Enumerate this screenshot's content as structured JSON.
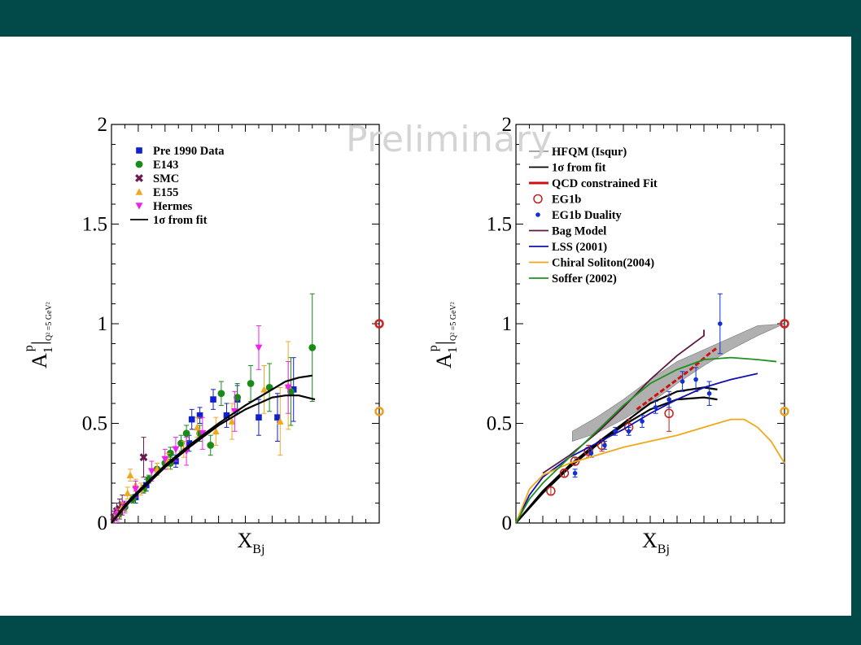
{
  "watermark": "Preliminary",
  "chart_data": [
    {
      "type": "scatter",
      "xlabel": "X_Bj",
      "ylabel": "A_1^p|_{Q²=5 GeV²}",
      "xlim": [
        0,
        1
      ],
      "ylim": [
        0,
        2
      ],
      "yticks": [
        "0",
        "0.5",
        "1",
        "1.5",
        "2"
      ],
      "legend_position": "top-left",
      "series": [
        {
          "name": "Pre 1990 Data",
          "color": "#1020d0",
          "marker": "square",
          "points": [
            [
              0.33,
              0.54
            ],
            [
              0.38,
              0.62
            ],
            [
              0.43,
              0.54
            ],
            [
              0.47,
              0.62
            ],
            [
              0.55,
              0.53
            ],
            [
              0.62,
              0.53
            ],
            [
              0.68,
              0.67
            ],
            [
              0.24,
              0.31
            ],
            [
              0.29,
              0.4
            ],
            [
              0.3,
              0.52
            ],
            [
              0.13,
              0.19
            ],
            [
              0.09,
              0.13
            ]
          ],
          "err": [
            0.04,
            0.05,
            0.06,
            0.07,
            0.09,
            0.12,
            0.16,
            0.03,
            0.04,
            0.05,
            0.03,
            0.03
          ]
        },
        {
          "name": "E143",
          "color": "#1a8a1a",
          "marker": "circle",
          "points": [
            [
              0.03,
              0.05
            ],
            [
              0.05,
              0.08
            ],
            [
              0.08,
              0.12
            ],
            [
              0.12,
              0.17
            ],
            [
              0.14,
              0.22
            ],
            [
              0.17,
              0.27
            ],
            [
              0.2,
              0.3
            ],
            [
              0.22,
              0.35
            ],
            [
              0.26,
              0.4
            ],
            [
              0.28,
              0.45
            ],
            [
              0.33,
              0.45
            ],
            [
              0.37,
              0.39
            ],
            [
              0.41,
              0.65
            ],
            [
              0.47,
              0.63
            ],
            [
              0.52,
              0.7
            ],
            [
              0.59,
              0.68
            ],
            [
              0.67,
              0.66
            ],
            [
              0.75,
              0.88
            ],
            [
              0.22,
              0.3
            ]
          ],
          "err": [
            0.02,
            0.02,
            0.02,
            0.02,
            0.02,
            0.03,
            0.03,
            0.03,
            0.04,
            0.04,
            0.04,
            0.05,
            0.06,
            0.07,
            0.09,
            0.12,
            0.17,
            0.27,
            0.03
          ]
        },
        {
          "name": "SMC",
          "color": "#6a1a50",
          "marker": "x",
          "points": [
            [
              0.01,
              0.03
            ],
            [
              0.02,
              0.06
            ],
            [
              0.03,
              0.07
            ],
            [
              0.04,
              0.09
            ],
            [
              0.12,
              0.33
            ]
          ],
          "err": [
            0.03,
            0.04,
            0.05,
            0.05,
            0.1
          ]
        },
        {
          "name": "E155",
          "color": "#f0a820",
          "marker": "triangle-up",
          "points": [
            [
              0.02,
              0.05
            ],
            [
              0.04,
              0.08
            ],
            [
              0.06,
              0.15
            ],
            [
              0.07,
              0.24
            ],
            [
              0.09,
              0.19
            ],
            [
              0.11,
              0.17
            ],
            [
              0.17,
              0.27
            ],
            [
              0.21,
              0.31
            ],
            [
              0.27,
              0.37
            ],
            [
              0.32,
              0.48
            ],
            [
              0.39,
              0.46
            ],
            [
              0.45,
              0.51
            ],
            [
              0.57,
              0.67
            ],
            [
              0.63,
              0.51
            ],
            [
              0.66,
              0.69
            ]
          ],
          "err": [
            0.02,
            0.02,
            0.03,
            0.03,
            0.03,
            0.03,
            0.03,
            0.04,
            0.04,
            0.05,
            0.07,
            0.09,
            0.12,
            0.17,
            0.22
          ]
        },
        {
          "name": "Hermes",
          "color": "#ee22ee",
          "marker": "triangle-down",
          "points": [
            [
              0.02,
              0.04
            ],
            [
              0.05,
              0.08
            ],
            [
              0.09,
              0.17
            ],
            [
              0.15,
              0.26
            ],
            [
              0.2,
              0.32
            ],
            [
              0.24,
              0.37
            ],
            [
              0.28,
              0.36
            ],
            [
              0.34,
              0.45
            ],
            [
              0.46,
              0.56
            ],
            [
              0.55,
              0.88
            ],
            [
              0.66,
              0.68
            ]
          ],
          "err": [
            0.03,
            0.03,
            0.04,
            0.05,
            0.05,
            0.06,
            0.07,
            0.08,
            0.1,
            0.11,
            0.13
          ]
        },
        {
          "name": "1σ from fit",
          "color": "#000000",
          "marker": "line",
          "upper": [
            [
              0.0,
              0.0
            ],
            [
              0.05,
              0.09
            ],
            [
              0.1,
              0.16
            ],
            [
              0.2,
              0.29
            ],
            [
              0.3,
              0.4
            ],
            [
              0.4,
              0.5
            ],
            [
              0.5,
              0.59
            ],
            [
              0.6,
              0.67
            ],
            [
              0.65,
              0.71
            ],
            [
              0.7,
              0.73
            ],
            [
              0.75,
              0.74
            ]
          ],
          "lower": [
            [
              0.0,
              0.0
            ],
            [
              0.05,
              0.08
            ],
            [
              0.1,
              0.15
            ],
            [
              0.2,
              0.28
            ],
            [
              0.3,
              0.39
            ],
            [
              0.4,
              0.49
            ],
            [
              0.5,
              0.57
            ],
            [
              0.6,
              0.63
            ],
            [
              0.65,
              0.64
            ],
            [
              0.7,
              0.64
            ],
            [
              0.76,
              0.62
            ]
          ]
        }
      ],
      "edge_markers": [
        {
          "y": 1.0,
          "color": "#d02020"
        },
        {
          "y": 0.56,
          "color": "#e8a020"
        }
      ]
    },
    {
      "type": "scatter",
      "xlabel": "X_Bj",
      "ylabel": "A_1^p|_{Q²=5 GeV²}",
      "xlim": [
        0,
        1
      ],
      "ylim": [
        0,
        2
      ],
      "yticks": [
        "0",
        "0.5",
        "1",
        "1.5",
        "2"
      ],
      "legend_position": "top-left",
      "series": [
        {
          "name": "HFQM (Isqur)",
          "color": "#999999",
          "marker": "band",
          "upper": [
            [
              0.21,
              0.46
            ],
            [
              0.3,
              0.53
            ],
            [
              0.4,
              0.62
            ],
            [
              0.5,
              0.72
            ],
            [
              0.6,
              0.81
            ],
            [
              0.7,
              0.87
            ],
            [
              0.8,
              0.93
            ],
            [
              0.9,
              0.99
            ],
            [
              1.0,
              1.0
            ]
          ],
          "lower": [
            [
              0.21,
              0.41
            ],
            [
              0.3,
              0.45
            ],
            [
              0.4,
              0.52
            ],
            [
              0.5,
              0.6
            ],
            [
              0.6,
              0.7
            ],
            [
              0.7,
              0.79
            ],
            [
              0.8,
              0.87
            ],
            [
              0.9,
              0.94
            ],
            [
              1.0,
              1.0
            ]
          ]
        },
        {
          "name": "1σ from fit",
          "color": "#000000",
          "marker": "line",
          "upper": [
            [
              0.0,
              0.0
            ],
            [
              0.1,
              0.16
            ],
            [
              0.2,
              0.29
            ],
            [
              0.3,
              0.4
            ],
            [
              0.4,
              0.5
            ],
            [
              0.5,
              0.6
            ],
            [
              0.6,
              0.66
            ],
            [
              0.7,
              0.68
            ],
            [
              0.75,
              0.67
            ]
          ],
          "lower": [
            [
              0.0,
              0.0
            ],
            [
              0.1,
              0.15
            ],
            [
              0.2,
              0.28
            ],
            [
              0.3,
              0.39
            ],
            [
              0.4,
              0.49
            ],
            [
              0.5,
              0.57
            ],
            [
              0.6,
              0.62
            ],
            [
              0.7,
              0.63
            ],
            [
              0.75,
              0.62
            ]
          ]
        },
        {
          "name": "QCD constrained Fit",
          "color": "#d01010",
          "marker": "dashed",
          "points": [
            [
              0.45,
              0.57
            ],
            [
              0.55,
              0.67
            ],
            [
              0.65,
              0.77
            ],
            [
              0.72,
              0.85
            ],
            [
              0.75,
              0.88
            ]
          ]
        },
        {
          "name": "EG1b",
          "color": "#c02020",
          "marker": "open-circle",
          "points": [
            [
              0.13,
              0.16
            ],
            [
              0.18,
              0.25
            ],
            [
              0.22,
              0.31
            ],
            [
              0.27,
              0.36
            ],
            [
              0.32,
              0.39
            ],
            [
              0.42,
              0.48
            ],
            [
              0.57,
              0.55
            ]
          ],
          "err": [
            0.02,
            0.02,
            0.02,
            0.03,
            0.03,
            0.04,
            0.09
          ]
        },
        {
          "name": "EG1b Duality",
          "color": "#1030d0",
          "marker": "dot",
          "points": [
            [
              0.22,
              0.25
            ],
            [
              0.28,
              0.35
            ],
            [
              0.33,
              0.39
            ],
            [
              0.37,
              0.46
            ],
            [
              0.42,
              0.46
            ],
            [
              0.47,
              0.51
            ],
            [
              0.52,
              0.58
            ],
            [
              0.57,
              0.62
            ],
            [
              0.62,
              0.71
            ],
            [
              0.67,
              0.72
            ],
            [
              0.72,
              0.65
            ],
            [
              0.76,
              1.0
            ]
          ],
          "err": [
            0.02,
            0.02,
            0.02,
            0.02,
            0.02,
            0.03,
            0.03,
            0.04,
            0.05,
            0.06,
            0.06,
            0.15
          ]
        },
        {
          "name": "Bag Model",
          "color": "#5a1a40",
          "marker": "line",
          "points": [
            [
              0.1,
              0.25
            ],
            [
              0.2,
              0.34
            ],
            [
              0.3,
              0.45
            ],
            [
              0.4,
              0.58
            ],
            [
              0.5,
              0.72
            ],
            [
              0.6,
              0.84
            ],
            [
              0.7,
              0.94
            ],
            [
              0.7,
              0.97
            ]
          ]
        },
        {
          "name": "LSS (2001)",
          "color": "#1010b0",
          "marker": "line",
          "points": [
            [
              0.0,
              0.0
            ],
            [
              0.05,
              0.14
            ],
            [
              0.1,
              0.23
            ],
            [
              0.2,
              0.33
            ],
            [
              0.3,
              0.4
            ],
            [
              0.4,
              0.47
            ],
            [
              0.5,
              0.55
            ],
            [
              0.6,
              0.62
            ],
            [
              0.7,
              0.68
            ],
            [
              0.8,
              0.72
            ],
            [
              0.9,
              0.75
            ]
          ]
        },
        {
          "name": "Chiral Soliton(2004)",
          "color": "#f0a818",
          "marker": "line",
          "points": [
            [
              0.0,
              0.0
            ],
            [
              0.05,
              0.17
            ],
            [
              0.1,
              0.24
            ],
            [
              0.2,
              0.3
            ],
            [
              0.3,
              0.34
            ],
            [
              0.4,
              0.38
            ],
            [
              0.5,
              0.41
            ],
            [
              0.6,
              0.44
            ],
            [
              0.7,
              0.48
            ],
            [
              0.8,
              0.52
            ],
            [
              0.85,
              0.52
            ],
            [
              0.9,
              0.48
            ],
            [
              0.95,
              0.41
            ],
            [
              1.0,
              0.3
            ]
          ]
        },
        {
          "name": "Soffer (2002)",
          "color": "#209020",
          "marker": "line",
          "points": [
            [
              0.0,
              0.0
            ],
            [
              0.05,
              0.12
            ],
            [
              0.1,
              0.2
            ],
            [
              0.2,
              0.33
            ],
            [
              0.3,
              0.46
            ],
            [
              0.4,
              0.59
            ],
            [
              0.5,
              0.7
            ],
            [
              0.6,
              0.77
            ],
            [
              0.7,
              0.82
            ],
            [
              0.8,
              0.83
            ],
            [
              0.9,
              0.82
            ],
            [
              0.97,
              0.81
            ]
          ]
        }
      ],
      "edge_markers": [
        {
          "y": 1.0,
          "color": "#d02020"
        },
        {
          "y": 0.56,
          "color": "#e8a020"
        }
      ]
    }
  ]
}
